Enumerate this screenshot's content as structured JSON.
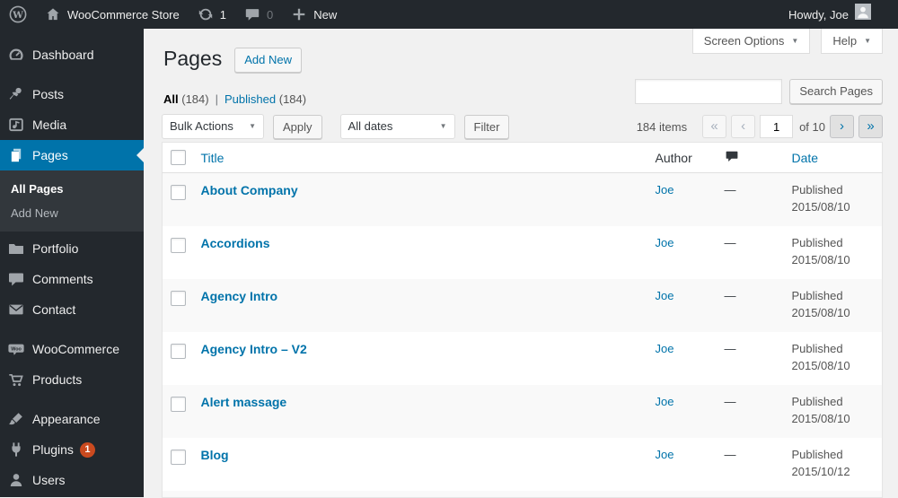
{
  "admin_bar": {
    "site_name": "WooCommerce Store",
    "update_count": "1",
    "comment_count": "0",
    "new_label": "New",
    "howdy": "Howdy, Joe"
  },
  "header": {
    "title": "Pages",
    "add_new_label": "Add New",
    "screen_options_label": "Screen Options",
    "help_label": "Help"
  },
  "views": [
    {
      "label": "All",
      "count": "(184)",
      "current": true
    },
    {
      "label": "Published",
      "count": "(184)",
      "current": false
    }
  ],
  "toolbar": {
    "bulk_actions_label": "Bulk Actions",
    "apply_label": "Apply",
    "dates_label": "All dates",
    "filter_label": "Filter",
    "search_button_label": "Search Pages"
  },
  "pagination": {
    "items_count": "184 items",
    "first": "«",
    "prev": "‹",
    "current_page": "1",
    "of_pages": "of 10",
    "next": "›",
    "last": "»"
  },
  "table": {
    "columns": {
      "title": "Title",
      "author": "Author",
      "comments_icon": "comment-bubble-icon",
      "date": "Date"
    },
    "rows": [
      {
        "title": "About Company",
        "author": "Joe",
        "comments": "—",
        "status": "Published",
        "date": "2015/08/10"
      },
      {
        "title": "Accordions",
        "author": "Joe",
        "comments": "—",
        "status": "Published",
        "date": "2015/08/10"
      },
      {
        "title": "Agency Intro",
        "author": "Joe",
        "comments": "—",
        "status": "Published",
        "date": "2015/08/10"
      },
      {
        "title": "Agency Intro – V2",
        "author": "Joe",
        "comments": "—",
        "status": "Published",
        "date": "2015/08/10"
      },
      {
        "title": "Alert massage",
        "author": "Joe",
        "comments": "—",
        "status": "Published",
        "date": "2015/08/10"
      },
      {
        "title": "Blog",
        "author": "Joe",
        "comments": "—",
        "status": "Published",
        "date": "2015/10/12"
      }
    ]
  },
  "sidebar": {
    "items": [
      {
        "label": "Dashboard",
        "icon": "dashboard-icon"
      },
      {
        "separator": true
      },
      {
        "label": "Posts",
        "icon": "pushpin-icon"
      },
      {
        "label": "Media",
        "icon": "media-icon"
      },
      {
        "label": "Pages",
        "icon": "pages-icon",
        "active": true
      },
      {
        "separator": true,
        "small": true
      },
      {
        "label": "Portfolio",
        "icon": "portfolio-icon"
      },
      {
        "label": "Comments",
        "icon": "comment-bubble-icon"
      },
      {
        "label": "Contact",
        "icon": "envelope-icon"
      },
      {
        "separator": true
      },
      {
        "label": "WooCommerce",
        "icon": "woocommerce-icon"
      },
      {
        "label": "Products",
        "icon": "cart-icon"
      },
      {
        "separator": true
      },
      {
        "label": "Appearance",
        "icon": "paintbrush-icon"
      },
      {
        "label": "Plugins",
        "icon": "plug-icon",
        "badge": "1"
      },
      {
        "label": "Users",
        "icon": "user-icon"
      }
    ],
    "pages_submenu": [
      {
        "label": "All Pages",
        "current": true
      },
      {
        "label": "Add New",
        "current": false
      }
    ]
  },
  "colors": {
    "accent_blue": "#0073aa",
    "admin_bar_bg": "#23282d",
    "sidebar_bg": "#23282d",
    "submenu_bg": "#32373c",
    "badge_red": "#ca4a1f",
    "content_bg": "#f1f1f1",
    "row_alt_bg": "#f9f9f9",
    "link_blue": "#0073aa"
  }
}
